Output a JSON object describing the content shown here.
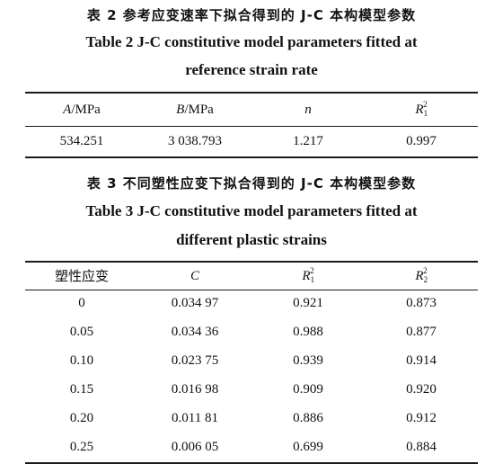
{
  "table2": {
    "caption_zh": "表 2 参考应变速率下拟合得到的 J-C 本构模型参数",
    "caption_en_line1": "Table 2 J-C constitutive model parameters fitted at",
    "caption_en_line2": "reference strain rate",
    "headers": {
      "a_sym": "A",
      "a_unit": "/MPa",
      "b_sym": "B",
      "b_unit": "/MPa",
      "n_sym": "n",
      "r_sym": "R",
      "r_sub": "1",
      "r_sup": "2"
    },
    "row": [
      "534.251",
      "3 038.793",
      "1.217",
      "0.997"
    ]
  },
  "table3": {
    "caption_zh": "表 3 不同塑性应变下拟合得到的 J-C 本构模型参数",
    "caption_en_line1": "Table 3 J-C constitutive model parameters fitted at",
    "caption_en_line2": "different plastic strains",
    "headers": {
      "strain": "塑性应变",
      "c_sym": "C",
      "r1_sym": "R",
      "r1_sub": "1",
      "r1_sup": "2",
      "r2_sym": "R",
      "r2_sub": "2",
      "r2_sup": "2"
    },
    "rows": [
      [
        "0",
        "0.034 97",
        "0.921",
        "0.873"
      ],
      [
        "0.05",
        "0.034 36",
        "0.988",
        "0.877"
      ],
      [
        "0.10",
        "0.023 75",
        "0.939",
        "0.914"
      ],
      [
        "0.15",
        "0.016 98",
        "0.909",
        "0.920"
      ],
      [
        "0.20",
        "0.011 81",
        "0.886",
        "0.912"
      ],
      [
        "0.25",
        "0.006 05",
        "0.699",
        "0.884"
      ]
    ]
  }
}
